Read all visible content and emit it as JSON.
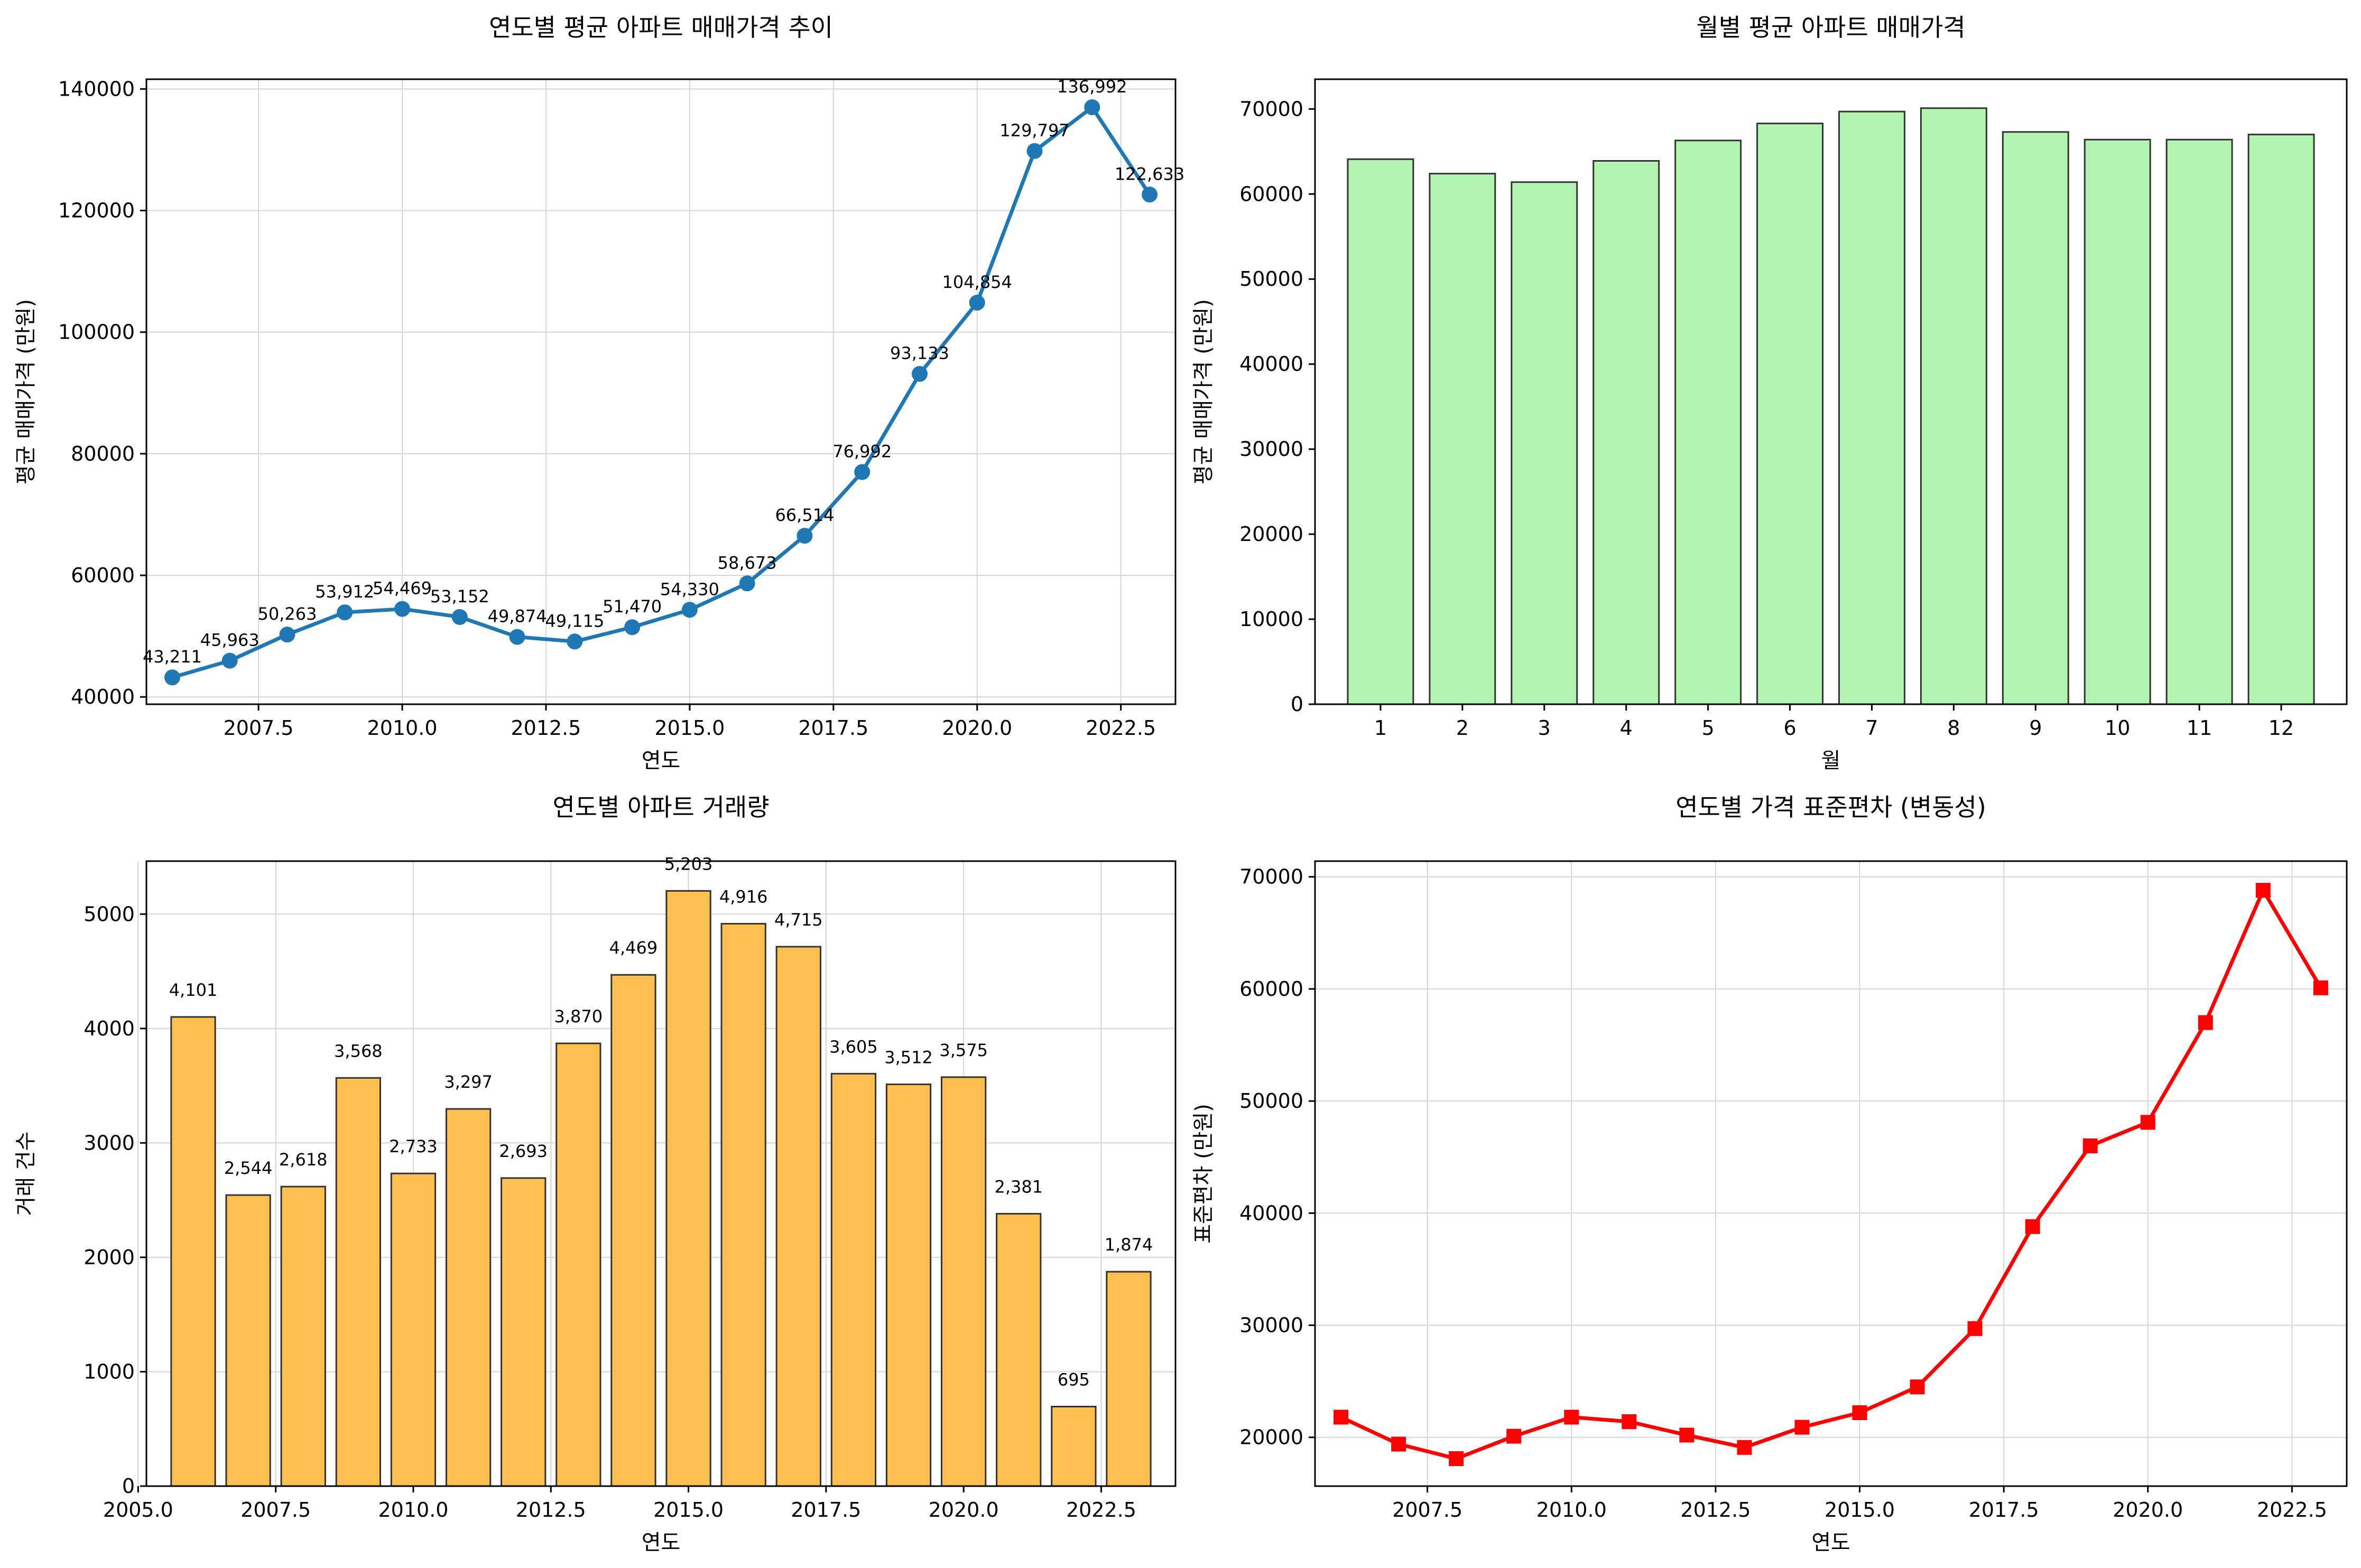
{
  "chart_data": [
    {
      "type": "line",
      "title": "연도별 평균 아파트 매매가격 추이",
      "xlabel": "연도",
      "ylabel": "평균 매매가격 (만원)",
      "color": "#1f77b4",
      "marker": "circle",
      "grid": true,
      "xlim": [
        2005.55,
        2023.45
      ],
      "ylim": [
        38800,
        141600
      ],
      "xticks": [
        2007.5,
        2010.0,
        2012.5,
        2015.0,
        2017.5,
        2020.0,
        2022.5
      ],
      "xtick_labels": [
        "2007.5",
        "2010.0",
        "2012.5",
        "2015.0",
        "2017.5",
        "2020.0",
        "2022.5"
      ],
      "yticks": [
        40000,
        60000,
        80000,
        100000,
        120000,
        140000
      ],
      "ytick_labels": [
        "40000",
        "60000",
        "80000",
        "100000",
        "120000",
        "140000"
      ],
      "x": [
        2006,
        2007,
        2008,
        2009,
        2010,
        2011,
        2012,
        2013,
        2014,
        2015,
        2016,
        2017,
        2018,
        2019,
        2020,
        2021,
        2022,
        2023
      ],
      "y": [
        43211,
        45963,
        50263,
        53912,
        54469,
        53152,
        49874,
        49115,
        51470,
        54330,
        58673,
        66514,
        76992,
        93133,
        104854,
        129797,
        136992,
        122633
      ],
      "data_labels": [
        "43,211",
        "45,963",
        "50,263",
        "53,912",
        "54,469",
        "53,152",
        "49,874",
        "49,115",
        "51,470",
        "54,330",
        "58,673",
        "66,514",
        "76,992",
        "93,133",
        "104,854",
        "129,797",
        "136,992",
        "122,633"
      ]
    },
    {
      "type": "bar",
      "title": "월별 평균 아파트 매매가격",
      "xlabel": "월",
      "ylabel": "평균 매매가격 (만원)",
      "color": "#b3f5b0",
      "edge_color": "#333333",
      "grid": false,
      "ylim": [
        0,
        73500
      ],
      "categories": [
        "1",
        "2",
        "3",
        "4",
        "5",
        "6",
        "7",
        "8",
        "9",
        "10",
        "11",
        "12"
      ],
      "values": [
        64100,
        62400,
        61400,
        63900,
        66300,
        68300,
        69700,
        70100,
        67300,
        66400,
        66400,
        67000
      ],
      "yticks": [
        0,
        10000,
        20000,
        30000,
        40000,
        50000,
        60000,
        70000
      ],
      "ytick_labels": [
        "0",
        "10000",
        "20000",
        "30000",
        "40000",
        "50000",
        "60000",
        "70000"
      ]
    },
    {
      "type": "bar",
      "title": "연도별 아파트 거래량",
      "xlabel": "연도",
      "ylabel": "거래 건수",
      "color": "#fdbf50",
      "edge_color": "#333333",
      "grid": true,
      "xlim": [
        2005.15,
        2023.85
      ],
      "ylim": [
        0,
        5463
      ],
      "x": [
        2006,
        2007,
        2008,
        2009,
        2010,
        2011,
        2012,
        2013,
        2014,
        2015,
        2016,
        2017,
        2018,
        2019,
        2020,
        2021,
        2022,
        2023
      ],
      "values": [
        4101,
        2544,
        2618,
        3568,
        2733,
        3297,
        2693,
        3870,
        4469,
        5203,
        4916,
        4715,
        3605,
        3512,
        3575,
        2381,
        695,
        1874
      ],
      "data_labels": [
        "4,101",
        "2,544",
        "2,618",
        "3,568",
        "2,733",
        "3,297",
        "2,693",
        "3,870",
        "4,469",
        "5,203",
        "4,916",
        "4,715",
        "3,605",
        "3,512",
        "3,575",
        "2,381",
        "695",
        "1,874"
      ],
      "xticks": [
        2005.0,
        2007.5,
        2010.0,
        2012.5,
        2015.0,
        2017.5,
        2020.0,
        2022.5
      ],
      "xtick_labels": [
        "2005.0",
        "2007.5",
        "2010.0",
        "2012.5",
        "2015.0",
        "2017.5",
        "2020.0",
        "2022.5"
      ],
      "yticks": [
        0,
        1000,
        2000,
        3000,
        4000,
        5000
      ],
      "ytick_labels": [
        "0",
        "1000",
        "2000",
        "3000",
        "4000",
        "5000"
      ]
    },
    {
      "type": "line",
      "title": "연도별 가격 표준편차 (변동성)",
      "xlabel": "연도",
      "ylabel": "표준편차 (만원)",
      "color": "#ff0000",
      "marker": "square",
      "grid": true,
      "xlim": [
        2005.55,
        2023.45
      ],
      "ylim": [
        15650,
        71400
      ],
      "xticks": [
        2007.5,
        2010.0,
        2012.5,
        2015.0,
        2017.5,
        2020.0,
        2022.5
      ],
      "xtick_labels": [
        "2007.5",
        "2010.0",
        "2012.5",
        "2015.0",
        "2017.5",
        "2020.0",
        "2022.5"
      ],
      "yticks": [
        20000,
        30000,
        40000,
        50000,
        60000,
        70000
      ],
      "ytick_labels": [
        "20000",
        "30000",
        "40000",
        "50000",
        "60000",
        "70000"
      ],
      "x": [
        2006,
        2007,
        2008,
        2009,
        2010,
        2011,
        2012,
        2013,
        2014,
        2015,
        2016,
        2017,
        2018,
        2019,
        2020,
        2021,
        2022,
        2023
      ],
      "y": [
        21800,
        19400,
        18100,
        20100,
        21800,
        21400,
        20200,
        19100,
        20900,
        22200,
        24500,
        29700,
        38800,
        46000,
        48100,
        57000,
        68800,
        60100
      ]
    }
  ]
}
